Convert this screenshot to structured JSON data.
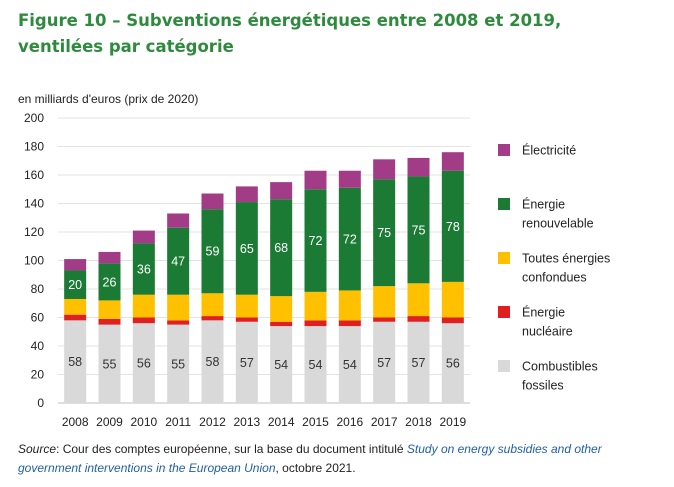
{
  "title": "Figure 10 – Subventions énergétiques entre 2008 et 2019, ventilées par catégorie",
  "source": {
    "label": "Source",
    "text1": ": Cour des comptes européenne, sur la base du document intitulé ",
    "link": "Study on energy subsidies and other government interventions in the European Union",
    "text2": ", octobre 2021."
  },
  "chart_data": {
    "type": "bar",
    "stacked": true,
    "ylabel": "en milliards d'euros (prix de 2020)",
    "ylim": [
      0,
      200
    ],
    "yticks": [
      0,
      20,
      40,
      60,
      80,
      100,
      120,
      140,
      160,
      180,
      200
    ],
    "grid": true,
    "legend_position": "right",
    "categories": [
      "2008",
      "2009",
      "2010",
      "2011",
      "2012",
      "2013",
      "2014",
      "2015",
      "2016",
      "2017",
      "2018",
      "2019"
    ],
    "series": [
      {
        "name": "Combustibles fossiles",
        "color": "#d9d9d9",
        "values": [
          58,
          55,
          56,
          55,
          58,
          57,
          54,
          54,
          54,
          57,
          57,
          56
        ],
        "labeled": true
      },
      {
        "name": "Énergie nucléaire",
        "color": "#e02020",
        "values": [
          4,
          4,
          4,
          3,
          3,
          3,
          3,
          4,
          4,
          3,
          4,
          4
        ],
        "labeled": false
      },
      {
        "name": "Toutes énergies confondues",
        "color": "#ffc000",
        "values": [
          11,
          13,
          16,
          18,
          16,
          16,
          18,
          20,
          21,
          22,
          23,
          25
        ],
        "labeled": false
      },
      {
        "name": "Énergie renouvelable",
        "color": "#1b7a33",
        "values": [
          20,
          26,
          36,
          47,
          59,
          65,
          68,
          72,
          72,
          75,
          75,
          78
        ],
        "labeled": true
      },
      {
        "name": "Électricité",
        "color": "#a23c86",
        "values": [
          8,
          8,
          9,
          10,
          11,
          11,
          12,
          13,
          12,
          14,
          13,
          13
        ],
        "labeled": false
      }
    ],
    "legend": [
      {
        "name": "Électricité",
        "color": "#a23c86",
        "lines": [
          "Électricité"
        ]
      },
      {
        "name": "Énergie renouvelable",
        "color": "#1b7a33",
        "lines": [
          "Énergie",
          "renouvelable"
        ]
      },
      {
        "name": "Toutes énergies confondues",
        "color": "#ffc000",
        "lines": [
          "Toutes énergies",
          "confondues"
        ]
      },
      {
        "name": "Énergie nucléaire",
        "color": "#e02020",
        "lines": [
          "Énergie",
          "nucléaire"
        ]
      },
      {
        "name": "Combustibles fossiles",
        "color": "#d9d9d9",
        "lines": [
          "Combustibles",
          "fossiles"
        ]
      }
    ]
  }
}
